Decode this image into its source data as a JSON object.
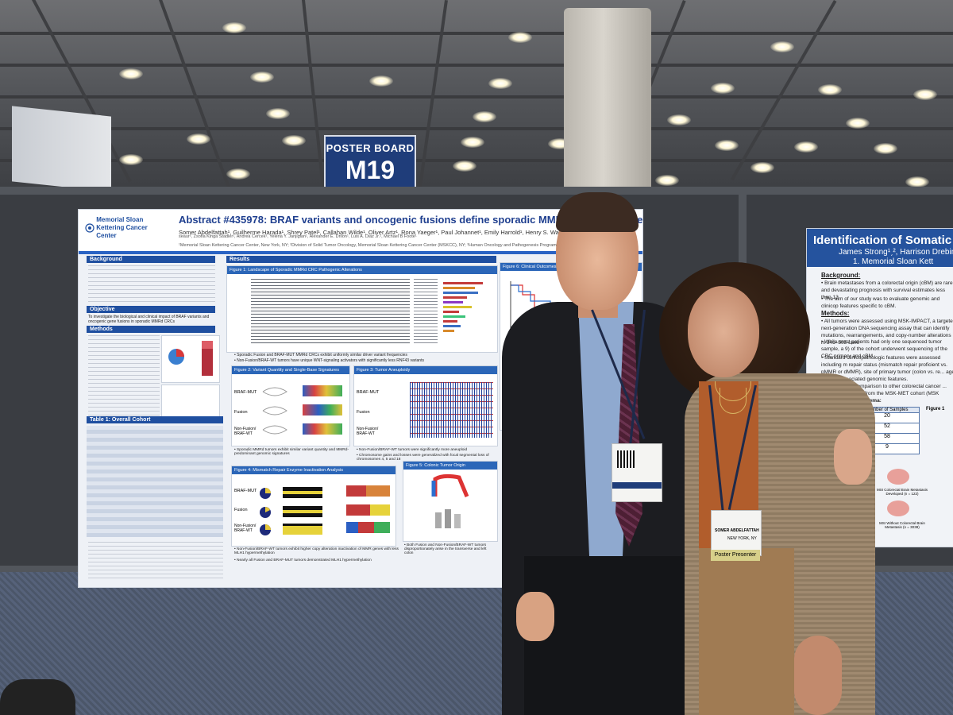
{
  "poster_board": {
    "label": "POSTER BOARD",
    "number": "M19"
  },
  "main_poster": {
    "institution": "Memorial Sloan Kettering Cancer Center",
    "title": "Abstract #435978: BRAF variants and oncogenic fusions define sporadic MMR-deficient colorect",
    "authors": "Somer Abdelfattah¹, Guilherme Harada¹, Shrey Patel¹, Callahan Wilde¹, Oliver Artz¹, Rona Yaeger¹, Paul Johannet¹, Emily Harrold¹, Henry S. Walch², Guillem Argiles¹,",
    "authors2": "seaur², Zsofia Kinga Stadler¹, Andrea Cercek¹, Yelena Y. Janjigian¹, Alexander E. Drilon¹, Luis A. Diaz Jr.¹, Michael B Foote¹",
    "affiliation": "¹Memorial Sloan Kettering Cancer Center, New York, NY; ²Division of Solid Tumor Oncology, Memorial Sloan Kettering Cancer Center (MSKCC), NY; ³Human Oncology and Pathogenesis Program, MSKCC, NY",
    "sections": {
      "background": "Background",
      "objective": "Objective",
      "objective_text": "To investigate the biological and clinical impact of BRAF variants and oncogenic gene fusions in sporadic MMRd CRCs",
      "methods": "Methods",
      "results": "Results",
      "table1": "Table 1: Overall Cohort"
    },
    "figures": {
      "fig1": "Figure 1: Landscape of Sporadic MMRd CRC Pathogenic Alterations",
      "fig2": "Figure 2: Variant Quantity and Single-Base Signatures",
      "fig3": "Figure 3: Tumor Aneuploidy",
      "fig4": "Figure 4: Mismatch Repair Enzyme Inactivation Analysis",
      "fig5": "Figure 5: Colonic Tumor Origin",
      "fig6": "Figure 6: Clinical Outcomes of Fusion..."
    },
    "row_labels": [
      "BRAF-MUT",
      "Fusion",
      "Non-Fusion/ BRAF-WT"
    ],
    "row_labels_fig4": [
      "BRAF-MUT",
      "Fusion",
      "Non-Fusion/ BRAF-WT"
    ],
    "bullets": {
      "fig1": "• Sporadic Fusion and BRAF-MUT MMRd CRCs exhibit uniformly similar driver variant frequencies",
      "fig1b": "• Non-Fusion/BRAF-WT tumors have unique WNT-signaling activators with significantly less RNF43 variants",
      "fig2": "• Sporadic MMRd tumors exhibit similar variant quantity and MMRd-predominant genomic signatures",
      "fig3": "• Non-Fusion/BRAF-WT tumors were significantly more aneuploid",
      "fig3b": "• Chromosome gains and losses were generalized with focal segmental loss of chromosomes 4, 5 and 18",
      "fig4": "• Non-Fusion/BRAF-WT tumors exhibit higher copy alteration inactivation of MMR genes with less MLH1 hypermethylation",
      "fig4b": "• Nearly all Fusion and BRAF-MUT tumors demonstrated MLH1 hypermethylation",
      "fig5": "• Both Fusion and Non-Fusion/BRAF-WT tumors disproportionately arise in the transverse and left colon"
    }
  },
  "second_poster": {
    "title": "Identification of Somatic A",
    "authors": "James Strong¹ˏ², Harrison Drebin¹ˏ³, Yu",
    "affiliation": "1. Memorial Sloan Kett",
    "background": "Background:",
    "bg_text": "• Brain metastases from a colorectal origin (cBM) are rare and devastating prognosis with survival estimates less than 13",
    "bg_text2": "• The aim of our study was to evaluate genomic and clinicop features specific to cBM.",
    "methods": "Methods:",
    "methods_text": "• All tumors were assessed using MSK-IMPACT, a targeted next-generation DNA sequencing assay that can identify mutations, rearrangements, and copy-number alterations in 341–505 canc",
    "methods_text2": "• While most patients had only one sequenced tumor sample, a 9) of the cohort underwent sequencing of the CRC primary and cBM.",
    "methods_text3": "• Standard clinicopathologic features were assessed including m repair status (mismatch repair proficient vs.",
    "methods_text4": "pMMR or dMMR), site of primary tumor (colon vs. re... age, sex and associated genomic features.",
    "methods_text5": "...evaluated in comparison to other colorectal cancer ... metastases (cOM) from the MSK-MET cohort (MSK",
    "schema": "...ing and study schema:",
    "sample_header": "Number of Samples",
    "samples": [
      "20",
      "52",
      "58",
      "9"
    ],
    "figure": "Figure 1",
    "msi_label": "MSI Colorectal Brain Metastasis Developed (n = 122)",
    "mss_label": "MSI Without Colorectal Brain Metastasis (n = 3038)"
  },
  "badges": {
    "man_badge_name": "SOMER ABDELFATTAH",
    "man_badge_city": "NEW YORK, NY",
    "ribbon": "Poster Presenter"
  },
  "colors": {
    "msk_blue": "#1f4fa0",
    "sign_blue": "#1f3d7a",
    "poster_header_blue": "#25539e"
  }
}
